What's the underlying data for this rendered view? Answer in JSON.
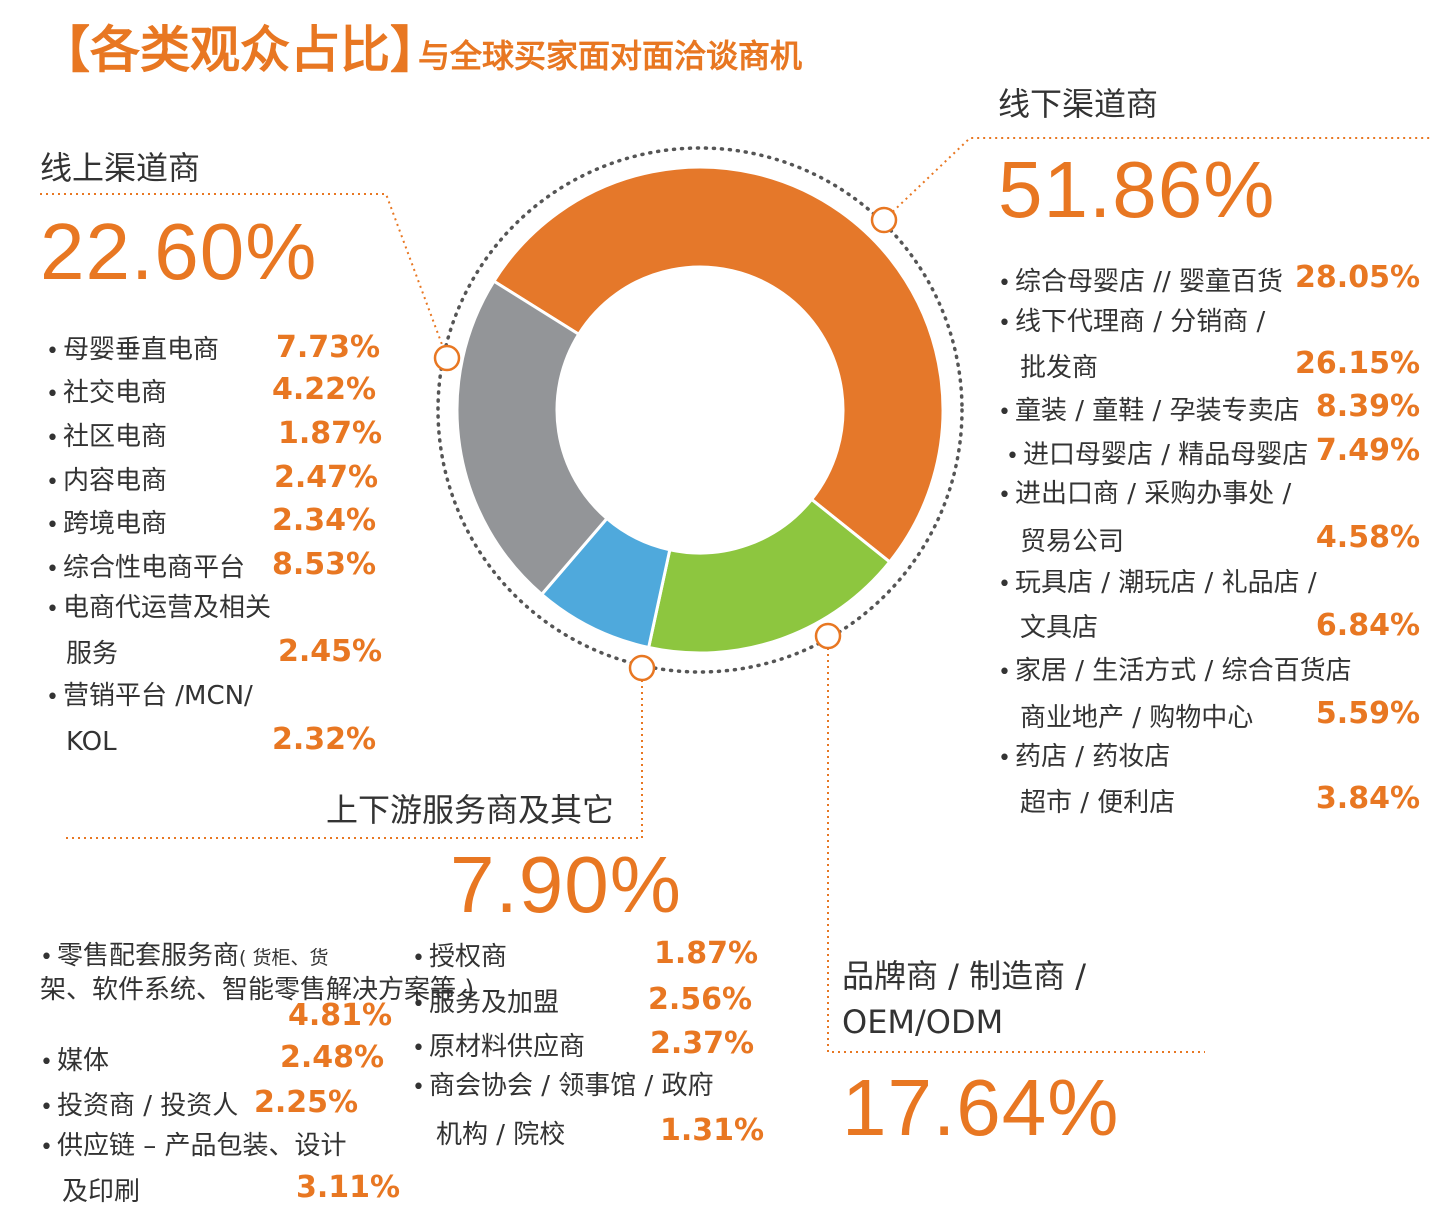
{
  "header": {
    "title": "【各类观众占比】",
    "subtitle": "与全球买家面对面洽谈商机"
  },
  "colors": {
    "accent": "#e87722",
    "orange": "#e5782a",
    "green": "#8dc63f",
    "blue": "#4fa9dc",
    "gray": "#939598"
  },
  "chart_data": {
    "type": "pie",
    "donut": true,
    "categories": [
      "线下渠道商",
      "品牌商 / 制造商 / OEM/ODM",
      "上下游服务商及其它",
      "线上渠道商"
    ],
    "values": [
      51.86,
      17.64,
      7.9,
      22.6
    ],
    "colors": [
      "#e5782a",
      "#8dc63f",
      "#4fa9dc",
      "#939598"
    ]
  },
  "groups": {
    "online": {
      "title": "线上渠道商",
      "pct": "22.60%",
      "items": [
        {
          "label": "母婴垂直电商",
          "pct": "7.73%"
        },
        {
          "label": "社交电商",
          "pct": "4.22%"
        },
        {
          "label": "社区电商",
          "pct": "1.87%"
        },
        {
          "label": "内容电商",
          "pct": "2.47%"
        },
        {
          "label": "跨境电商",
          "pct": "2.34%"
        },
        {
          "label": "综合性电商平台",
          "pct": "8.53%"
        },
        {
          "label": "电商代运营及相关",
          "label2": "服务",
          "pct": "2.45%"
        },
        {
          "label": "营销平台 /MCN/",
          "label2": "KOL",
          "pct": "2.32%"
        }
      ]
    },
    "offline": {
      "title": "线下渠道商",
      "pct": "51.86%",
      "items": [
        {
          "label": "综合母婴店 // 婴童百货",
          "pct": "28.05%"
        },
        {
          "label": "线下代理商 / 分销商 /",
          "label2": "批发商",
          "pct": "26.15%"
        },
        {
          "label": "童装 / 童鞋 / 孕装专卖店",
          "pct": "8.39%"
        },
        {
          "label": "进口母婴店 / 精品母婴店",
          "pct": "7.49%"
        },
        {
          "label": "进出口商 / 采购办事处 /",
          "label2": "贸易公司",
          "pct": "4.58%"
        },
        {
          "label": "玩具店 / 潮玩店 / 礼品店 /",
          "label2": "文具店",
          "pct": "6.84%"
        },
        {
          "label": "家居 / 生活方式 / 综合百货店",
          "label2": "商业地产 / 购物中心",
          "pct": "5.59%"
        },
        {
          "label": "药店 / 药妆店",
          "label2": "超市 / 便利店",
          "pct": "3.84%"
        }
      ]
    },
    "service": {
      "title": "上下游服务商及其它",
      "pct": "7.90%",
      "items_left": [
        {
          "label": "零售配套服务商",
          "note": "( 货柜、货",
          "note2": "架、软件系统、智能零售解决方案等 )",
          "pct": "4.81%"
        },
        {
          "label": "媒体",
          "pct": "2.48%"
        },
        {
          "label": "投资商 / 投资人",
          "pct": "2.25%"
        },
        {
          "label": "供应链 – 产品包装、设计",
          "label2": "及印刷",
          "pct": "3.11%"
        }
      ],
      "items_right": [
        {
          "label": "授权商",
          "pct": "1.87%"
        },
        {
          "label": "服务及加盟",
          "pct": "2.56%"
        },
        {
          "label": "原材料供应商",
          "pct": "2.37%"
        },
        {
          "label": "商会协会 / 领事馆 / 政府",
          "label2": "机构 / 院校",
          "pct": "1.31%"
        }
      ]
    },
    "brand": {
      "title": "品牌商 / 制造商 /",
      "title2": "OEM/ODM",
      "pct": "17.64%"
    }
  }
}
